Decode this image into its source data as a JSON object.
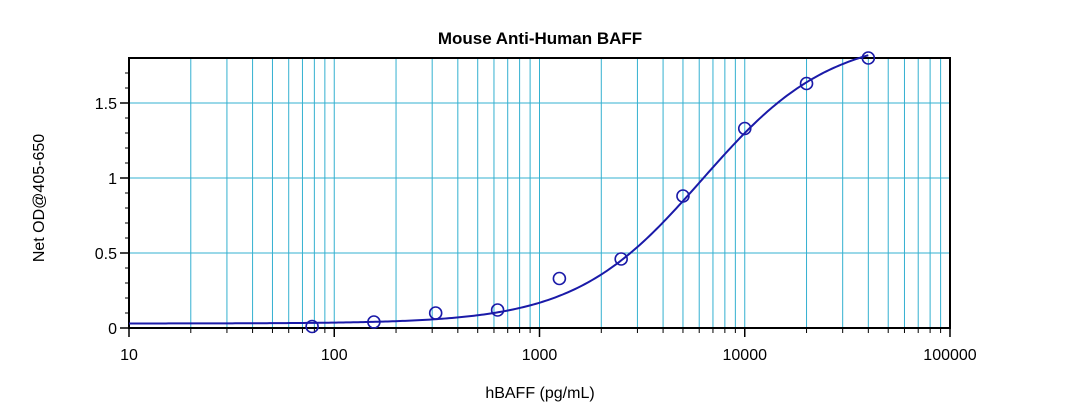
{
  "chart_data": {
    "type": "scatter",
    "title": "Mouse Anti-Human BAFF",
    "xlabel": "hBAFF (pg/mL)",
    "ylabel": "Net OD@405-650",
    "x_scale": "log",
    "xlim": [
      10,
      100000
    ],
    "ylim": [
      0,
      1.8
    ],
    "x_ticks": [
      10,
      100,
      1000,
      10000,
      100000
    ],
    "x_tick_labels": [
      "10",
      "100",
      "1000",
      "10000",
      "100000"
    ],
    "y_ticks": [
      0,
      0.5,
      1,
      1.5
    ],
    "y_tick_labels": [
      "0",
      "0.5",
      "1",
      "1.5"
    ],
    "grid": true,
    "colors": {
      "grid": "#33b0d0",
      "series": "#1a1aa8",
      "frame": "#000000"
    },
    "series": [
      {
        "x": [
          78,
          156,
          312,
          625,
          1250,
          2500,
          5000,
          10000,
          20000,
          40000
        ],
        "y": [
          0.01,
          0.04,
          0.1,
          0.12,
          0.33,
          0.46,
          0.88,
          1.33,
          1.63,
          1.8
        ]
      }
    ],
    "fit_curve": {
      "model": "4PL",
      "bottom": 0.03,
      "top": 1.95,
      "ec50": 6200,
      "hill": 1.4
    }
  }
}
